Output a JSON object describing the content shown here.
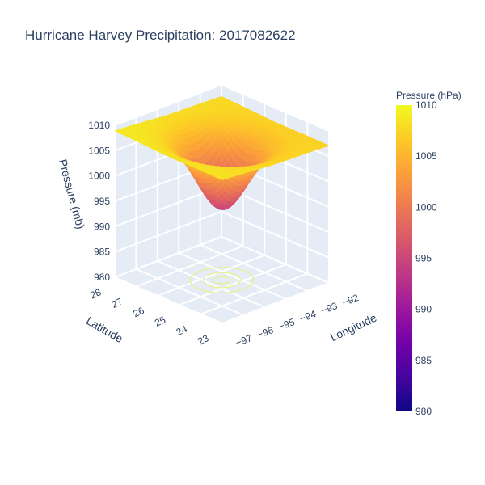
{
  "title": "Hurricane Harvey Precipitation: 2017082622",
  "chart_data": {
    "type": "surface",
    "title": "Hurricane Harvey Precipitation: 2017082622",
    "xaxis": {
      "label": "Longitude",
      "ticks": [
        "−97",
        "−96",
        "−95",
        "−94",
        "−93",
        "−92"
      ]
    },
    "yaxis": {
      "label": "Latitude",
      "ticks": [
        "23",
        "24",
        "25",
        "26",
        "27",
        "28"
      ]
    },
    "zaxis": {
      "label": "Pressure (mb)",
      "ticks": [
        "980",
        "985",
        "990",
        "995",
        "1000",
        "1005",
        "1010"
      ],
      "range": [
        980,
        1010
      ]
    },
    "surface": {
      "ambient_pressure": 1008,
      "min_pressure": 994,
      "center_longitude": -94.5,
      "center_latitude": 25.5
    },
    "colorbar": {
      "title": "Pressure (hPa)",
      "ticks": [
        "980",
        "985",
        "990",
        "995",
        "1000",
        "1005",
        "1010"
      ],
      "range": [
        980,
        1010
      ],
      "colorscale": [
        "#0d0887",
        "#46039f",
        "#7201a8",
        "#9c179e",
        "#bd3786",
        "#d8576b",
        "#ed7953",
        "#fb9f3a",
        "#fdca26",
        "#f0f921"
      ]
    },
    "background": {
      "scene_color": "#e5ecf6",
      "grid_color": "#ffffff"
    }
  }
}
